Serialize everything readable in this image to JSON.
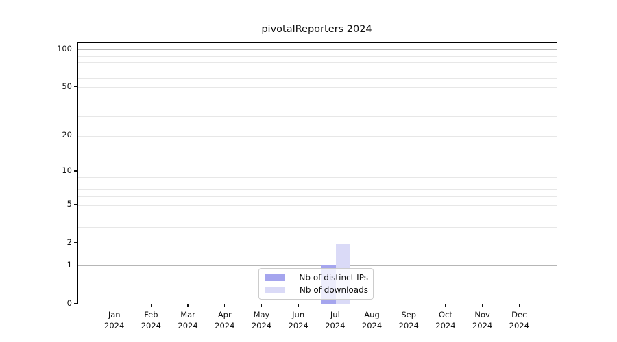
{
  "chart_data": {
    "type": "bar",
    "title": "pivotalReporters 2024",
    "categories": [
      "Jan",
      "Feb",
      "Mar",
      "Apr",
      "May",
      "Jun",
      "Jul",
      "Aug",
      "Sep",
      "Oct",
      "Nov",
      "Dec"
    ],
    "year": "2024",
    "series": [
      {
        "name": "Nb of distinct IPs",
        "color": "#a5a5ee",
        "values": [
          0,
          0,
          0,
          0,
          0,
          0,
          1,
          0,
          0,
          0,
          0,
          0
        ]
      },
      {
        "name": "Nb of downloads",
        "color": "#dadaf7",
        "values": [
          0,
          0,
          0,
          0,
          0,
          0,
          2,
          0,
          0,
          0,
          0,
          0
        ]
      }
    ],
    "yscale": "log1p",
    "ylim": [
      0,
      112.3
    ],
    "yticks": [
      0,
      1,
      2,
      5,
      10,
      20,
      50,
      100
    ],
    "major_gridlines": [
      1,
      10,
      100
    ],
    "minor_gridlines": [
      2,
      3,
      4,
      5,
      6,
      7,
      8,
      9,
      20,
      29,
      39,
      50,
      59,
      69,
      79,
      89
    ],
    "grid": true,
    "legend_position": "lower center",
    "colors": {
      "major_grid": "#b6b6b6",
      "minor_grid": "#e7e7e7",
      "spine": "#000000",
      "text": "#111111",
      "background": "#ffffff"
    }
  }
}
